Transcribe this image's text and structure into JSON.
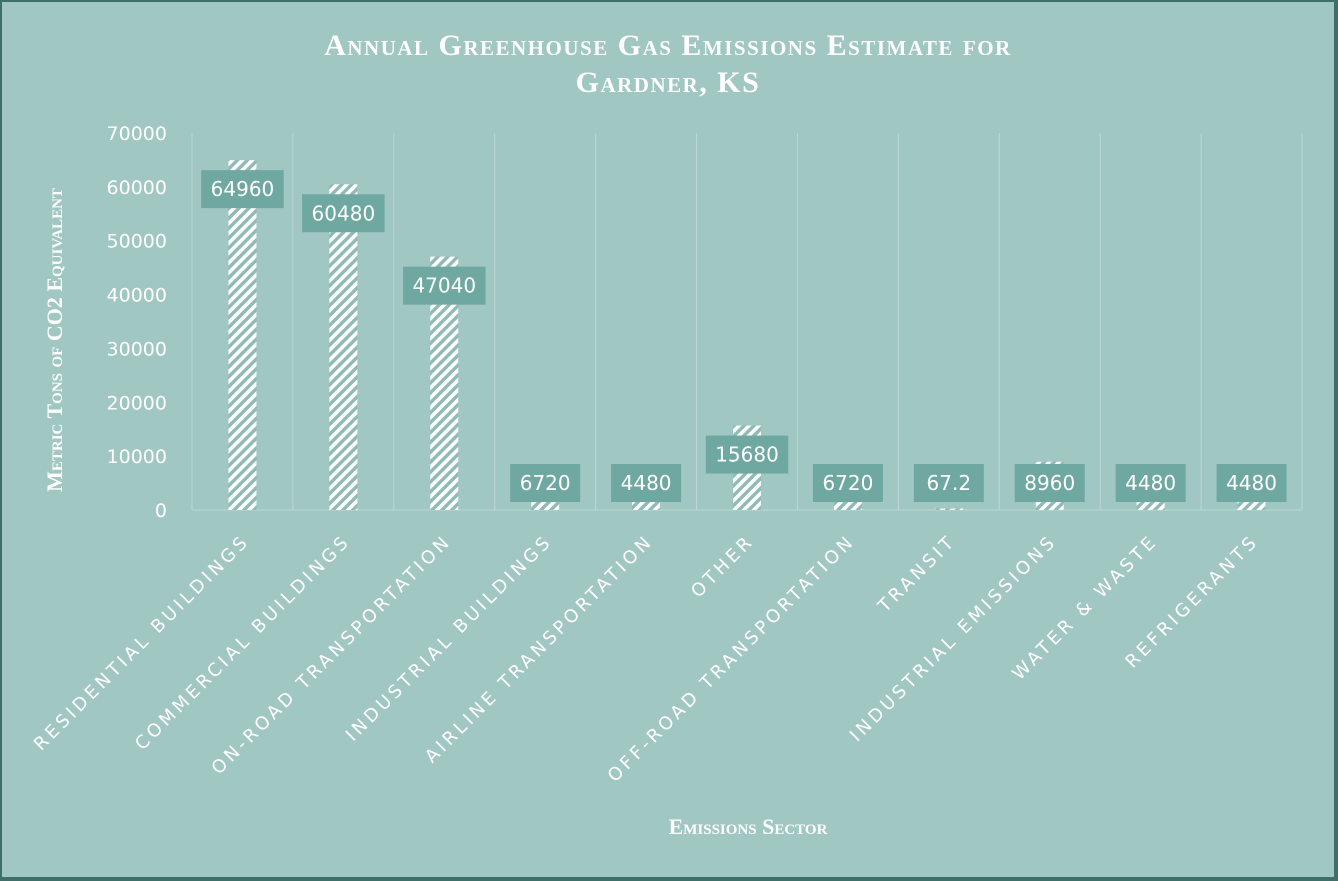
{
  "chart_data": {
    "type": "bar",
    "title_line1": "Annual Greenhouse Gas Emissions Estimate for",
    "title_line2": "Gardner, KS",
    "xlabel": "Emissions Sector",
    "ylabel": "Metric Tons of CO2 Equivalent",
    "ylim": [
      0,
      70000
    ],
    "yticks": [
      0,
      10000,
      20000,
      30000,
      40000,
      50000,
      60000,
      70000
    ],
    "categories": [
      "Residential Buildings",
      "Commercial Buildings",
      "On-Road Transportation",
      "Industrial Buildings",
      "Airline Transportation",
      "Other",
      "Off-Road Transportation",
      "Transit",
      "Industrial Emissions",
      "Water & Waste",
      "Refrigerants"
    ],
    "values": [
      64960,
      60480,
      47040,
      6720,
      4480,
      15680,
      6720,
      67.2,
      8960,
      4480,
      4480
    ],
    "data_labels": [
      "64960",
      "60480",
      "47040",
      "6720",
      "4480",
      "15680",
      "6720",
      "67.2",
      "8960",
      "4480",
      "4480"
    ],
    "grid": true,
    "colors": {
      "background": "#a1c7c3",
      "border": "#3f6f6a",
      "bar_stripe": "#ffffff",
      "bar_base": "#7fb0ab",
      "label_box": "#6fa8a1",
      "grid": "#bcd8d5",
      "text": "#ffffff"
    }
  }
}
